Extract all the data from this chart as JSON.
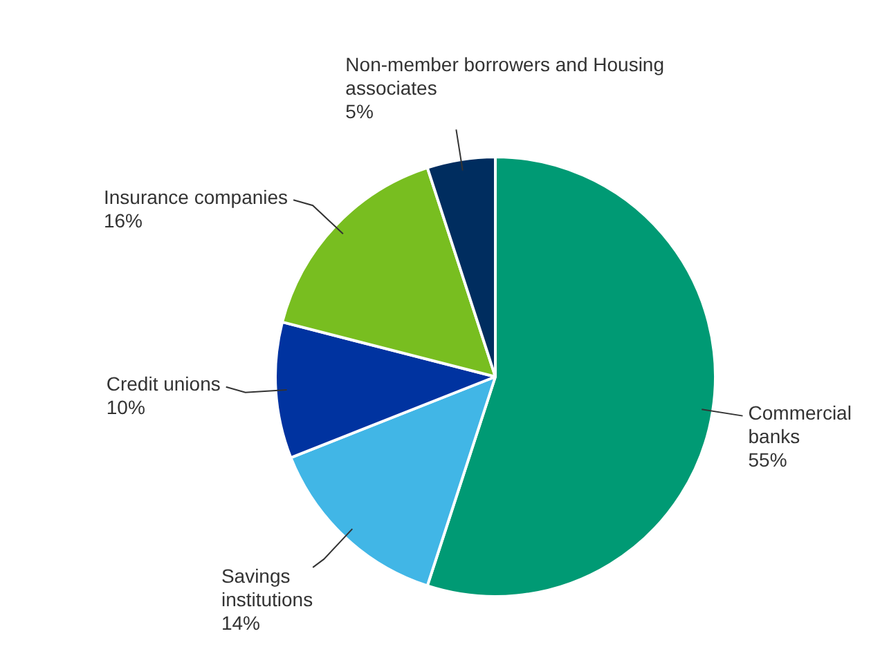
{
  "chart_data": {
    "type": "pie",
    "categories": [
      "Commercial banks",
      "Savings institutions",
      "Credit unions",
      "Insurance companies",
      "Non-member borrowers and Housing associates"
    ],
    "values": [
      55,
      14,
      10,
      16,
      5
    ],
    "value_labels": [
      "55%",
      "14%",
      "10%",
      "16%",
      "5%"
    ],
    "colors": [
      "#009a74",
      "#41b6e6",
      "#0033a0",
      "#78be20",
      "#002d5f"
    ],
    "legend": false
  }
}
